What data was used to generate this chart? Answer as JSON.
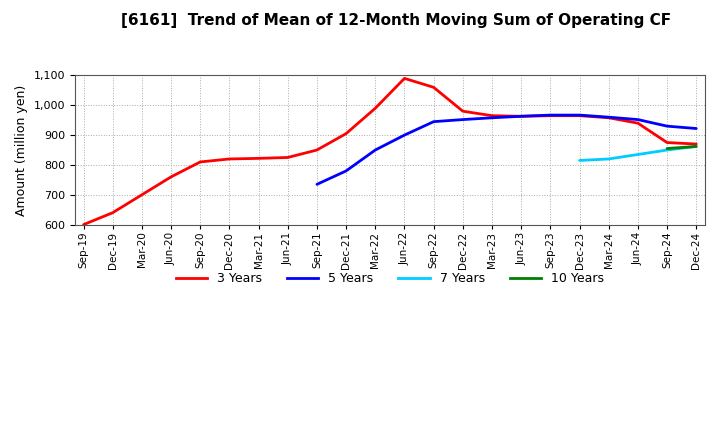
{
  "title": "[6161]  Trend of Mean of 12-Month Moving Sum of Operating CF",
  "ylabel": "Amount (million yen)",
  "ylim": [
    600,
    1100
  ],
  "yticks": [
    600,
    700,
    800,
    900,
    1000,
    1100
  ],
  "background_color": "#ffffff",
  "grid_color": "#aaaaaa",
  "x_labels": [
    "Sep-19",
    "Dec-19",
    "Mar-20",
    "Jun-20",
    "Sep-20",
    "Dec-20",
    "Mar-21",
    "Jun-21",
    "Sep-21",
    "Dec-21",
    "Mar-22",
    "Jun-22",
    "Sep-22",
    "Dec-22",
    "Mar-23",
    "Jun-23",
    "Sep-23",
    "Dec-23",
    "Mar-24",
    "Jun-24",
    "Sep-24",
    "Dec-24"
  ],
  "series": {
    "3 Years": {
      "color": "#ff0000",
      "x": [
        0,
        1,
        2,
        3,
        4,
        5,
        6,
        7,
        8,
        9,
        10,
        11,
        12,
        13,
        14,
        15,
        16,
        17,
        18,
        19,
        20,
        21
      ],
      "y": [
        600,
        640,
        700,
        760,
        810,
        820,
        822,
        825,
        850,
        905,
        990,
        1090,
        1060,
        980,
        965,
        963,
        965,
        965,
        958,
        940,
        875,
        870
      ]
    },
    "5 Years": {
      "color": "#0000ff",
      "x": [
        8,
        9,
        10,
        11,
        12,
        13,
        14,
        15,
        16,
        17,
        18,
        19,
        20,
        21
      ],
      "y": [
        735,
        780,
        850,
        900,
        945,
        952,
        958,
        963,
        967,
        967,
        960,
        952,
        930,
        922
      ]
    },
    "7 Years": {
      "color": "#00ccff",
      "x": [
        17,
        18,
        19,
        20,
        21
      ],
      "y": [
        815,
        820,
        835,
        850,
        862
      ]
    },
    "10 Years": {
      "color": "#008000",
      "x": [
        20,
        21
      ],
      "y": [
        855,
        862
      ]
    }
  },
  "legend_labels": [
    "3 Years",
    "5 Years",
    "7 Years",
    "10 Years"
  ],
  "legend_colors": [
    "#ff0000",
    "#0000ff",
    "#00ccff",
    "#008000"
  ]
}
